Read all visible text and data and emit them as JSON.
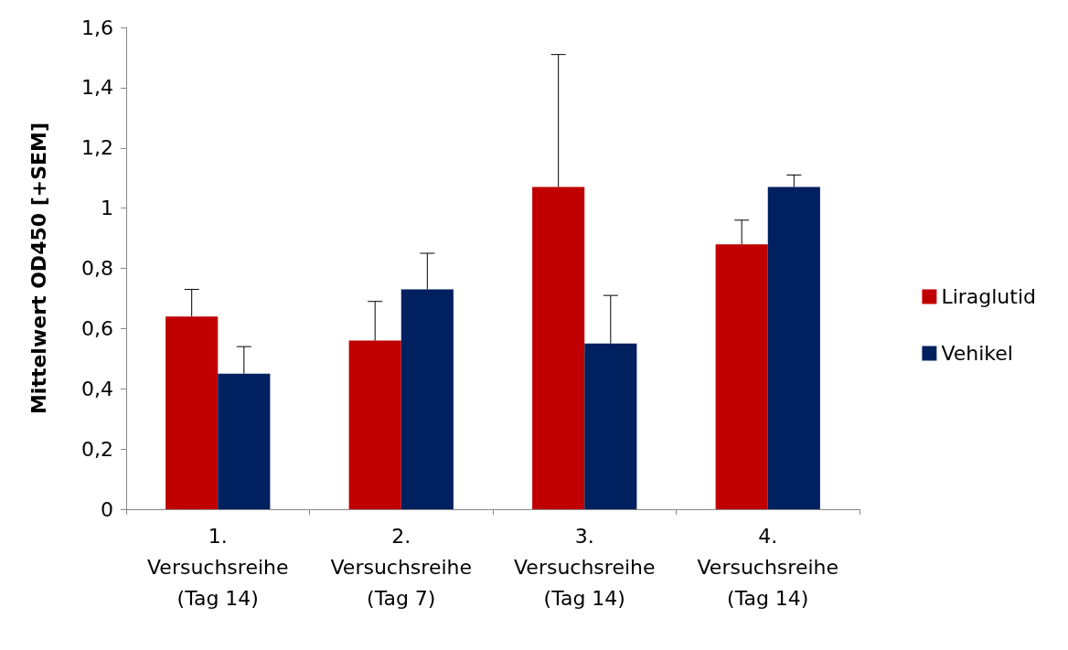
{
  "chart_data": {
    "type": "bar",
    "ylabel": "Mittelwert OD450 [+SEM]",
    "categories": [
      "1.\nVersuchsreihe\n(Tag 14)",
      "2.\nVersuchsreihe\n(Tag 7)",
      "3.\nVersuchsreihe\n(Tag 14)",
      "4.\nVersuchsreihe\n(Tag 14)"
    ],
    "series": [
      {
        "name": "Liraglutid",
        "color": "#c00000",
        "values": [
          0.64,
          0.56,
          1.07,
          0.88
        ],
        "errors": [
          [
            0.64,
            0.73
          ],
          [
            0.56,
            0.69
          ],
          [
            1.07,
            1.51
          ],
          [
            0.88,
            0.96
          ]
        ]
      },
      {
        "name": "Vehikel",
        "color": "#002060",
        "values": [
          0.45,
          0.73,
          0.55,
          1.07
        ],
        "errors": [
          [
            0.45,
            0.54
          ],
          [
            0.73,
            0.85
          ],
          [
            0.55,
            0.71
          ],
          [
            1.07,
            1.11
          ]
        ]
      }
    ],
    "ylim": [
      0,
      1.6
    ],
    "yticks": [
      0,
      {
        "value": 0.2,
        "label": "0,2"
      },
      {
        "value": 0.4,
        "label": "0,4"
      },
      {
        "value": 0.6,
        "label": "0,6"
      },
      {
        "value": 0.8,
        "label": "0,8"
      },
      1,
      {
        "value": 1.2,
        "label": "1,2"
      },
      {
        "value": 1.4,
        "label": "1,4"
      },
      {
        "value": 1.6,
        "label": "1,6"
      }
    ],
    "grid": false,
    "legend": "right"
  }
}
